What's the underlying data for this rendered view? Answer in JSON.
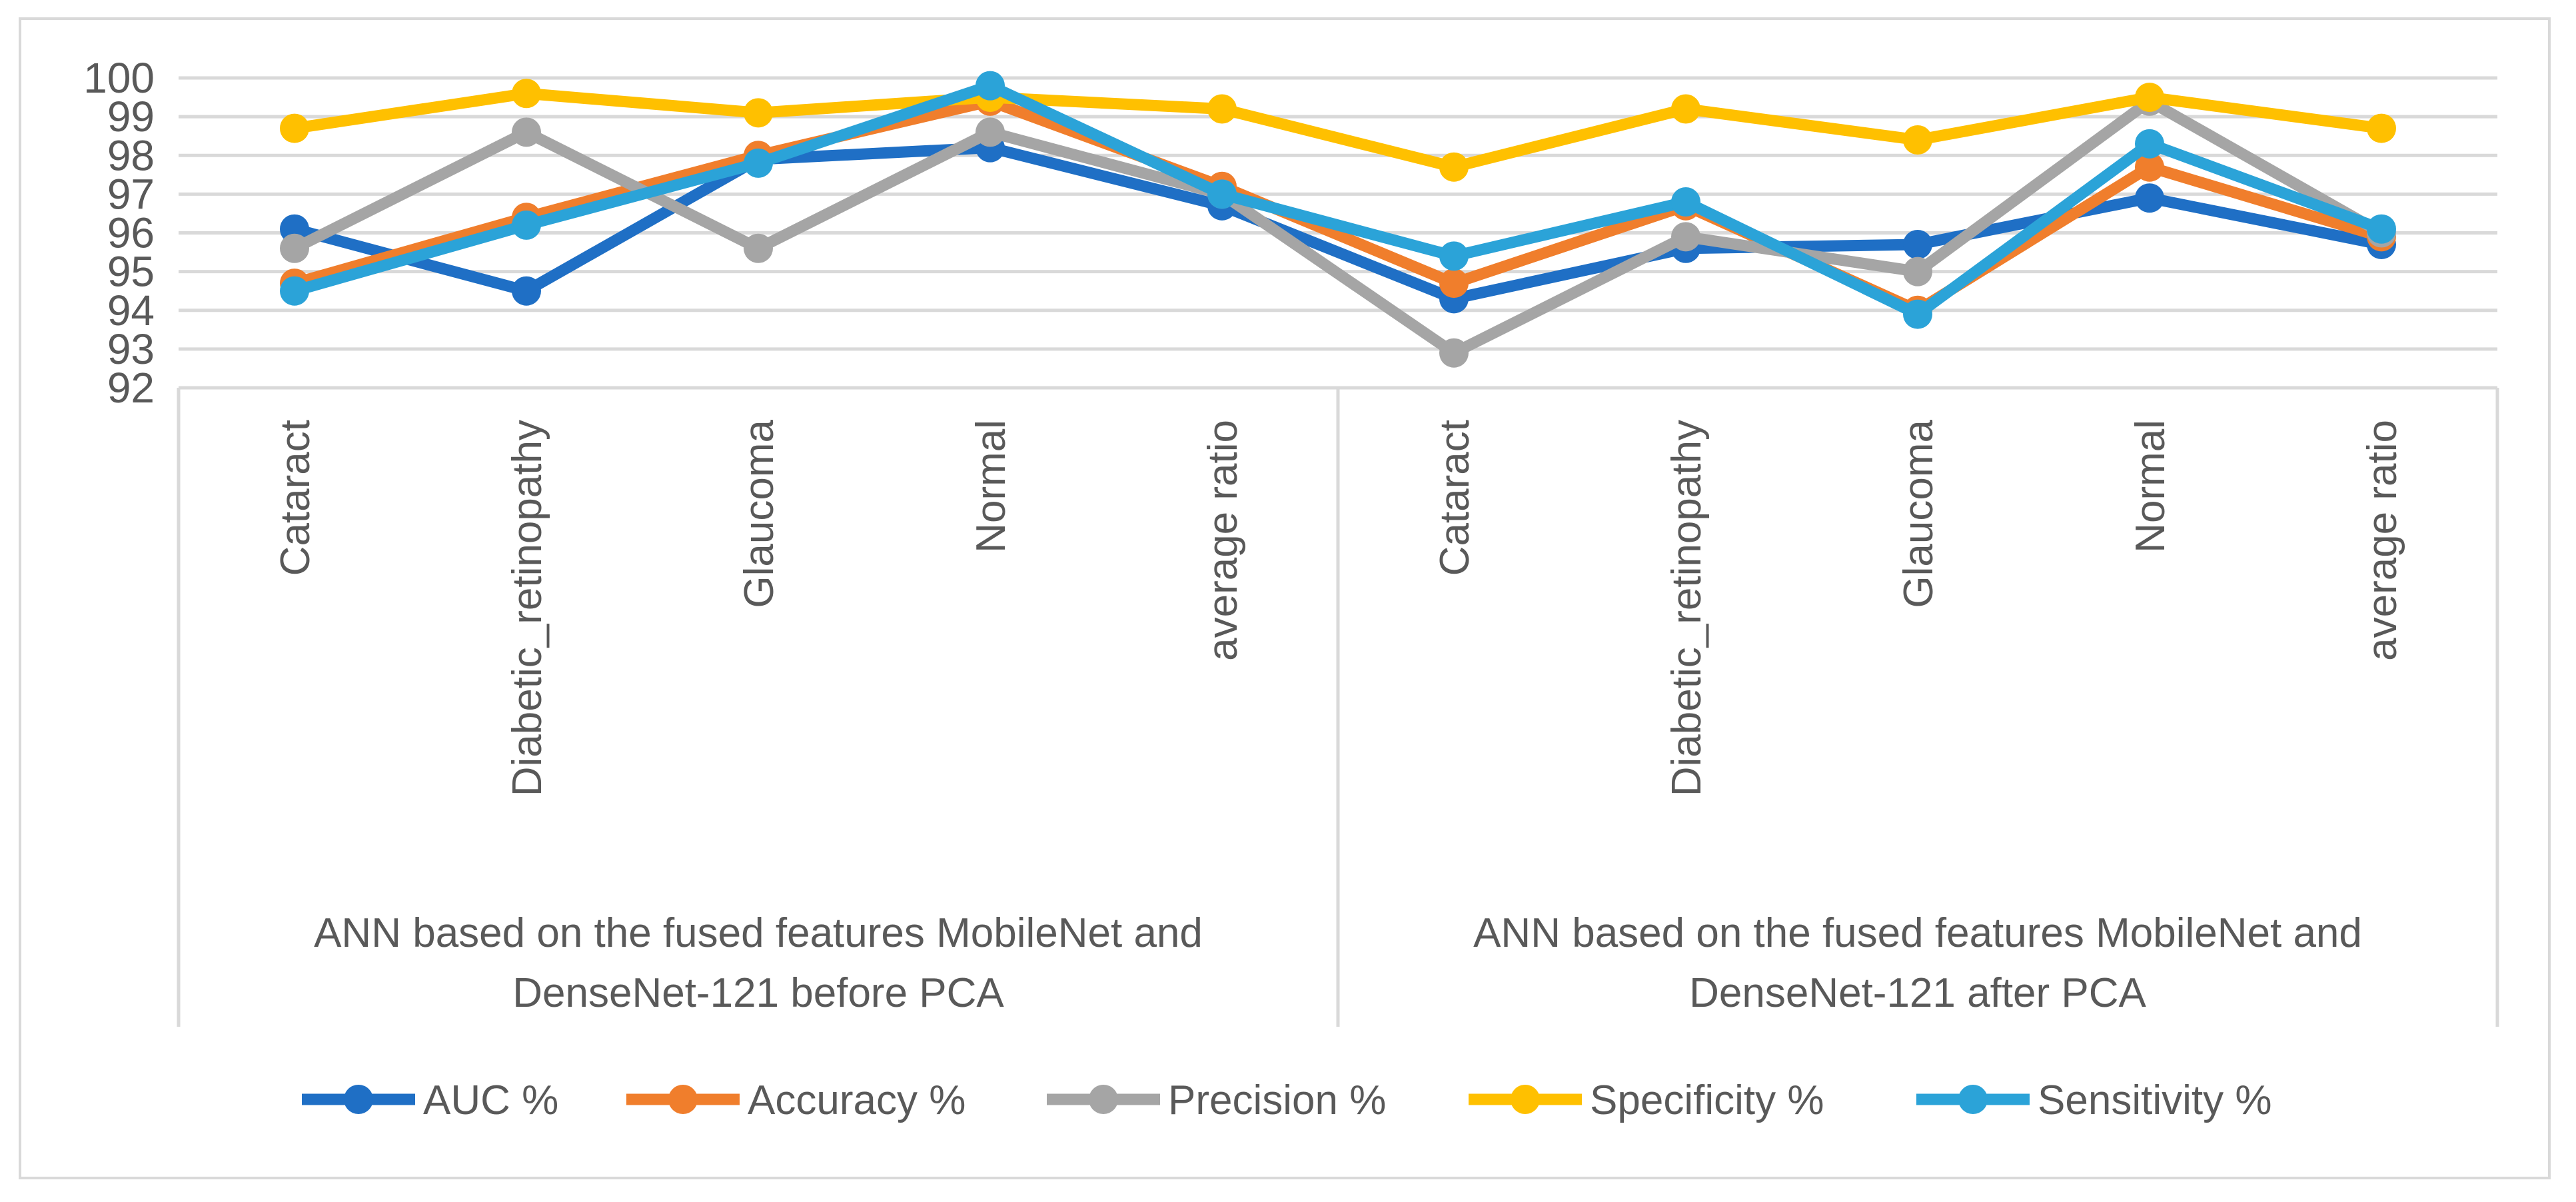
{
  "chart_data": {
    "type": "line",
    "ylim": [
      92,
      100
    ],
    "yticks": [
      92,
      93,
      94,
      95,
      96,
      97,
      98,
      99,
      100
    ],
    "grid": true,
    "legend_position": "bottom",
    "categories": [
      "Cataract",
      "Diabetic_retinopathy",
      "Glaucoma",
      "Normal",
      "average ratio",
      "Cataract",
      "Diabetic_retinopathy",
      "Glaucoma",
      "Normal",
      "average ratio"
    ],
    "groups": [
      {
        "label_lines": [
          "ANN  based on the fused features MobileNet and",
          "DenseNet-121 before PCA"
        ],
        "span": [
          0,
          4
        ]
      },
      {
        "label_lines": [
          "ANN  based on the fused features MobileNet and",
          "DenseNet-121 after PCA"
        ],
        "span": [
          5,
          9
        ]
      }
    ],
    "series": [
      {
        "name": "AUC %",
        "color": "#1f6fc5",
        "values": [
          96.1,
          94.5,
          97.9,
          98.2,
          96.7,
          94.3,
          95.6,
          95.7,
          96.9,
          95.7
        ]
      },
      {
        "name": "Accuracy %",
        "color": "#f07e2c",
        "values": [
          94.7,
          96.4,
          98.0,
          99.4,
          97.2,
          94.7,
          96.7,
          94.0,
          97.7,
          95.9
        ]
      },
      {
        "name": "Precision %",
        "color": "#a5a5a5",
        "values": [
          95.6,
          98.6,
          95.6,
          98.6,
          97.0,
          92.9,
          95.9,
          95.0,
          99.4,
          96.0
        ]
      },
      {
        "name": "Specificity %",
        "color": "#ffc000",
        "values": [
          98.7,
          99.6,
          99.1,
          99.5,
          99.2,
          97.7,
          99.2,
          98.4,
          99.5,
          98.7
        ]
      },
      {
        "name": "Sensitivity %",
        "color": "#2ba3d8",
        "values": [
          94.5,
          96.2,
          97.8,
          99.8,
          97.0,
          95.4,
          96.8,
          93.9,
          98.3,
          96.1
        ]
      }
    ]
  }
}
